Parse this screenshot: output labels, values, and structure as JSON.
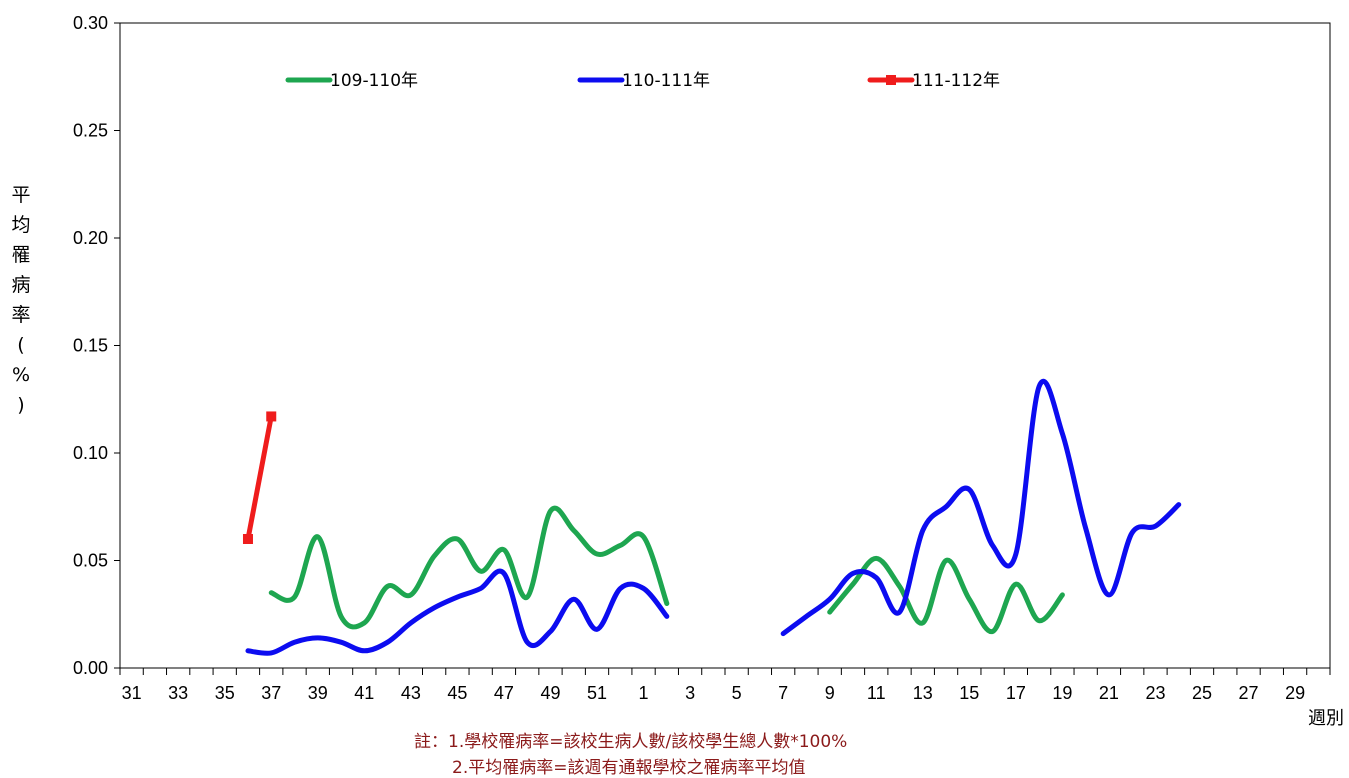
{
  "chart_data": {
    "type": "line",
    "title": "",
    "xlabel": "週別",
    "ylabel": "平均罹病率(%)",
    "ylim": [
      0,
      0.3
    ],
    "y_ticks": [
      "0.00",
      "0.05",
      "0.10",
      "0.15",
      "0.20",
      "0.25",
      "0.30"
    ],
    "categories": [
      "31",
      "32",
      "33",
      "34",
      "35",
      "36",
      "37",
      "38",
      "39",
      "40",
      "41",
      "42",
      "43",
      "44",
      "45",
      "46",
      "47",
      "48",
      "49",
      "50",
      "51",
      "52",
      "1",
      "2",
      "3",
      "4",
      "5",
      "6",
      "7",
      "8",
      "9",
      "10",
      "11",
      "12",
      "13",
      "14",
      "15",
      "16",
      "17",
      "18",
      "19",
      "20",
      "21",
      "22",
      "23",
      "24",
      "25",
      "26",
      "27",
      "28",
      "29",
      "30"
    ],
    "x_tick_labels": [
      "31",
      "33",
      "35",
      "37",
      "39",
      "41",
      "43",
      "45",
      "47",
      "49",
      "51",
      "1",
      "3",
      "5",
      "7",
      "9",
      "11",
      "13",
      "15",
      "17",
      "19",
      "21",
      "23",
      "25",
      "27",
      "29"
    ],
    "legend_position": "top",
    "grid": false,
    "series": [
      {
        "name": "109-110年",
        "color": "#1ea650",
        "marker": "none",
        "segments": [
          {
            "start_index": 6,
            "values": [
              0.035,
              0.033,
              0.061,
              0.024,
              0.021,
              0.038,
              0.034,
              0.052,
              0.06,
              0.045,
              0.055,
              0.033,
              0.073,
              0.064,
              0.053,
              0.057,
              0.061,
              0.03
            ]
          },
          {
            "start_index": 30,
            "values": [
              0.026,
              0.039,
              0.051,
              0.038,
              0.021,
              0.05,
              0.032,
              0.017,
              0.039,
              0.022,
              0.034
            ]
          }
        ]
      },
      {
        "name": "110-111年",
        "color": "#0c0cf0",
        "marker": "none",
        "segments": [
          {
            "start_index": 5,
            "values": [
              0.008,
              0.007,
              0.012,
              0.014,
              0.012,
              0.008,
              0.012,
              0.021,
              0.028,
              0.033,
              0.037,
              0.044,
              0.012,
              0.017,
              0.032,
              0.018,
              0.037,
              0.037,
              0.024
            ]
          },
          {
            "start_index": 28,
            "values": [
              0.016,
              0.024,
              0.032,
              0.044,
              0.042,
              0.026,
              0.064,
              0.075,
              0.083,
              0.057,
              0.053,
              0.131,
              0.109,
              0.065,
              0.034,
              0.063,
              0.066,
              0.076
            ]
          }
        ]
      },
      {
        "name": "111-112年",
        "color": "#ef1c1c",
        "marker": "square",
        "segments": [
          {
            "start_index": 5,
            "values": [
              0.06,
              0.117
            ]
          }
        ]
      }
    ]
  },
  "notes": [
    "註：1.學校罹病率=該校生病人數/該校學生總人數*100%",
    "2.平均罹病率=該週有通報學校之罹病率平均值"
  ]
}
